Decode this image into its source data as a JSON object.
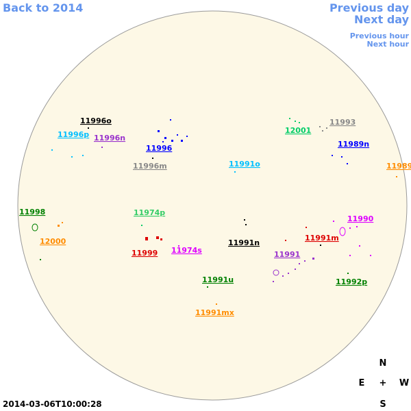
{
  "nav": {
    "back": "Back to 2014",
    "previous_day": "Previous day",
    "next_day": "Next day",
    "previous_hour": "Previous hour",
    "next_hour": "Next hour"
  },
  "regions": [
    "11996o",
    "11996p",
    "11996n",
    "11996",
    "11996m",
    "11991o",
    "12001",
    "11993",
    "11989n",
    "11989",
    "11998",
    "12000",
    "11974p",
    "11999",
    "11974s",
    "11991n",
    "11991m",
    "11990",
    "11991",
    "11992p",
    "11991u",
    "11991mx"
  ],
  "timestamp": "2014-03-06T10:00:28",
  "compass": {
    "north": "N",
    "east": "E",
    "center": "+",
    "west": "W",
    "south": "S"
  }
}
